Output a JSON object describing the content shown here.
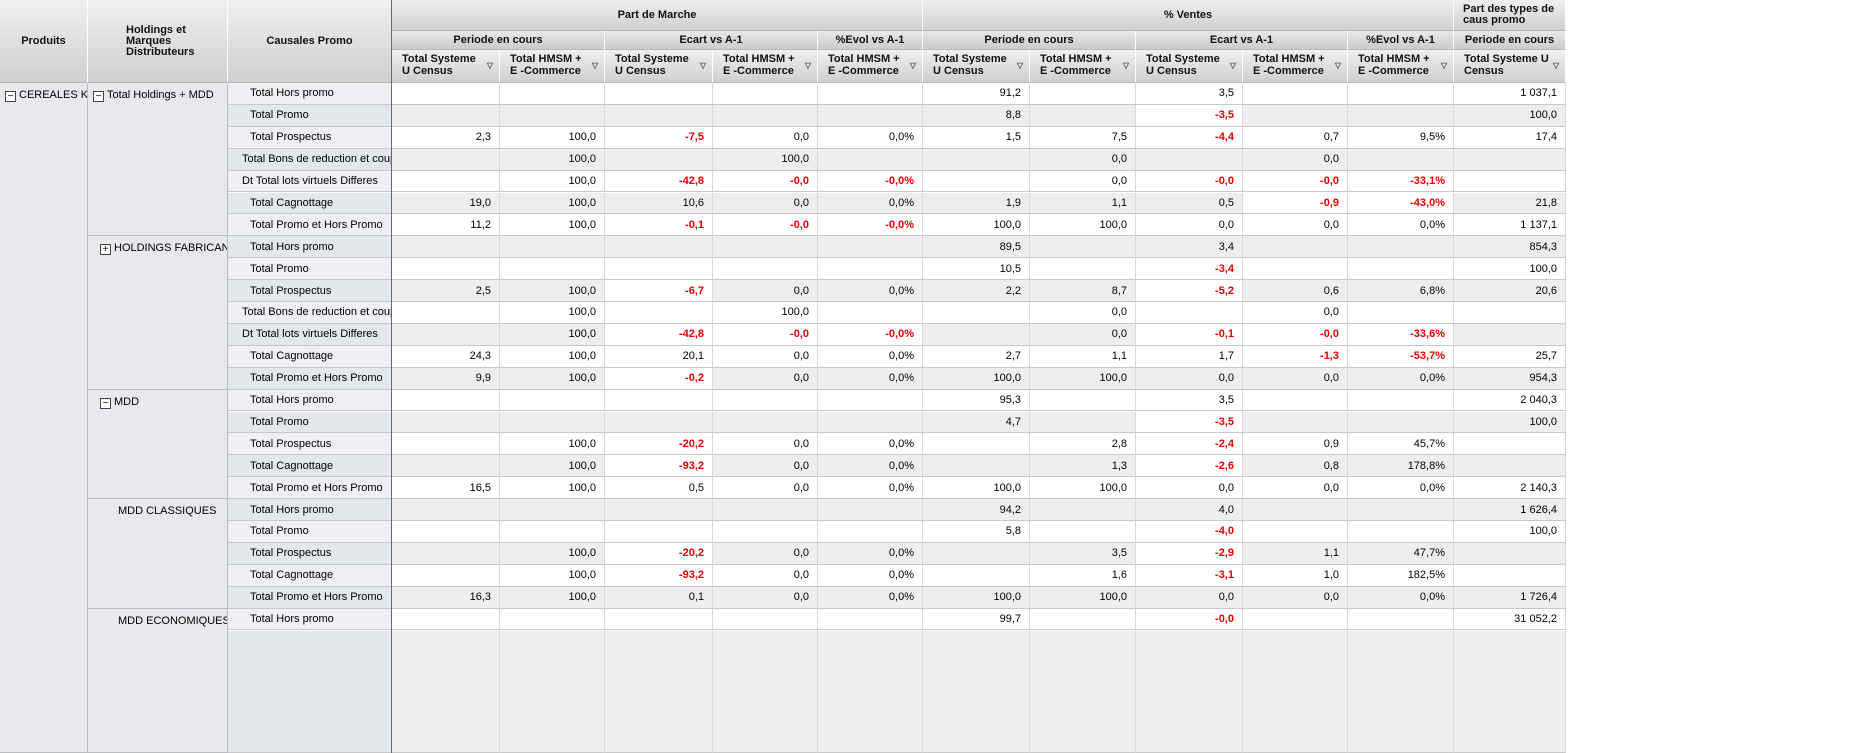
{
  "headers": {
    "produits": "Produits",
    "holdings": "Holdings et\nMarques\nDistributeurs",
    "causales": "Causales Promo",
    "groups": [
      {
        "label": "Part de Marche"
      },
      {
        "label": "% Ventes"
      },
      {
        "label": "Part des types de caus promo"
      }
    ],
    "subgroups": [
      {
        "label": "Periode en cours"
      },
      {
        "label": "Ecart vs A-1"
      },
      {
        "label": "%Evol vs A-1"
      },
      {
        "label": "Periode en cours"
      },
      {
        "label": "Ecart vs A-1"
      },
      {
        "label": "%Evol vs A-1"
      },
      {
        "label": "Periode en cours"
      }
    ],
    "columns": [
      {
        "label": "Total Systeme U Census",
        "filter_icon": "filter-icon"
      },
      {
        "label": "Total HMSM + E -Commerce",
        "filter_icon": "filter-icon"
      },
      {
        "label": "Total Systeme U Census",
        "filter_icon": "filter-icon"
      },
      {
        "label": "Total HMSM + E -Commerce",
        "filter_icon": "filter-icon"
      },
      {
        "label": "Total HMSM + E -Commerce",
        "filter_icon": "filter-icon"
      },
      {
        "label": "Total Systeme U Census",
        "filter_icon": "filter-icon"
      },
      {
        "label": "Total HMSM + E -Commerce",
        "filter_icon": "filter-icon"
      },
      {
        "label": "Total Systeme U Census",
        "filter_icon": "filter-icon"
      },
      {
        "label": "Total HMSM + E -Commerce",
        "filter_icon": "filter-icon"
      },
      {
        "label": "Total HMSM + E -Commerce",
        "filter_icon": "filter-icon"
      },
      {
        "label": "Total Systeme U Census",
        "filter_icon": "filter-icon"
      }
    ]
  },
  "product": {
    "label": "CEREALES KG",
    "toggle": "−"
  },
  "holding_groups": [
    {
      "label": "Total Holdings + MDD",
      "toggle": "−",
      "rows": 7
    },
    {
      "label": "HOLDINGS FABRICANTS",
      "toggle": "+",
      "rows": 7
    },
    {
      "label": "MDD",
      "toggle": "−",
      "rows": 5
    },
    {
      "label": "MDD CLASSIQUES",
      "toggle": "",
      "rows": 5
    },
    {
      "label": "MDD ECONOMIQUES",
      "toggle": "",
      "rows": 2
    }
  ],
  "rows": [
    {
      "causal": "Total Hors promo",
      "values": [
        "",
        "",
        "",
        "",
        "",
        "91,2",
        "",
        "3,5",
        "",
        "",
        "1 037,1"
      ]
    },
    {
      "causal": "Total Promo",
      "values": [
        "",
        "",
        "",
        "",
        "",
        "8,8",
        "",
        "-3,5",
        "",
        "",
        "100,0"
      ]
    },
    {
      "causal": "Total Prospectus",
      "values": [
        "2,3",
        "100,0",
        "-7,5",
        "0,0",
        "0,0%",
        "1,5",
        "7,5",
        "-4,4",
        "0,7",
        "9,5%",
        "17,4"
      ]
    },
    {
      "causal": "Total Bons de reduction et coupons",
      "values": [
        "",
        "100,0",
        "",
        "100,0",
        "",
        "",
        "0,0",
        "",
        "0,0",
        "",
        ""
      ]
    },
    {
      "causal": "Dt Total lots virtuels Differes",
      "values": [
        "",
        "100,0",
        "-42,8",
        "-0,0",
        "-0,0%",
        "",
        "0,0",
        "-0,0",
        "-0,0",
        "-33,1%",
        ""
      ]
    },
    {
      "causal": "Total Cagnottage",
      "values": [
        "19,0",
        "100,0",
        "10,6",
        "0,0",
        "0,0%",
        "1,9",
        "1,1",
        "0,5",
        "-0,9",
        "-43,0%",
        "21,8"
      ]
    },
    {
      "causal": "Total Promo et Hors Promo",
      "values": [
        "11,2",
        "100,0",
        "-0,1",
        "-0,0",
        "-0,0%",
        "100,0",
        "100,0",
        "0,0",
        "0,0",
        "0,0%",
        "1 137,1"
      ]
    },
    {
      "causal": "Total Hors promo",
      "values": [
        "",
        "",
        "",
        "",
        "",
        "89,5",
        "",
        "3,4",
        "",
        "",
        "854,3"
      ]
    },
    {
      "causal": "Total Promo",
      "values": [
        "",
        "",
        "",
        "",
        "",
        "10,5",
        "",
        "-3,4",
        "",
        "",
        "100,0"
      ]
    },
    {
      "causal": "Total Prospectus",
      "values": [
        "2,5",
        "100,0",
        "-6,7",
        "0,0",
        "0,0%",
        "2,2",
        "8,7",
        "-5,2",
        "0,6",
        "6,8%",
        "20,6"
      ]
    },
    {
      "causal": "Total Bons de reduction et coupons",
      "values": [
        "",
        "100,0",
        "",
        "100,0",
        "",
        "",
        "0,0",
        "",
        "0,0",
        "",
        ""
      ]
    },
    {
      "causal": "Dt Total lots virtuels Differes",
      "values": [
        "",
        "100,0",
        "-42,8",
        "-0,0",
        "-0,0%",
        "",
        "0,0",
        "-0,1",
        "-0,0",
        "-33,6%",
        ""
      ]
    },
    {
      "causal": "Total Cagnottage",
      "values": [
        "24,3",
        "100,0",
        "20,1",
        "0,0",
        "0,0%",
        "2,7",
        "1,1",
        "1,7",
        "-1,3",
        "-53,7%",
        "25,7"
      ]
    },
    {
      "causal": "Total Promo et Hors Promo",
      "values": [
        "9,9",
        "100,0",
        "-0,2",
        "0,0",
        "0,0%",
        "100,0",
        "100,0",
        "0,0",
        "0,0",
        "0,0%",
        "954,3"
      ]
    },
    {
      "causal": "Total Hors promo",
      "values": [
        "",
        "",
        "",
        "",
        "",
        "95,3",
        "",
        "3,5",
        "",
        "",
        "2 040,3"
      ]
    },
    {
      "causal": "Total Promo",
      "values": [
        "",
        "",
        "",
        "",
        "",
        "4,7",
        "",
        "-3,5",
        "",
        "",
        "100,0"
      ]
    },
    {
      "causal": "Total Prospectus",
      "values": [
        "",
        "100,0",
        "-20,2",
        "0,0",
        "0,0%",
        "",
        "2,8",
        "-2,4",
        "0,9",
        "45,7%",
        ""
      ]
    },
    {
      "causal": "Total Cagnottage",
      "values": [
        "",
        "100,0",
        "-93,2",
        "0,0",
        "0,0%",
        "",
        "1,3",
        "-2,6",
        "0,8",
        "178,8%",
        ""
      ]
    },
    {
      "causal": "Total Promo et Hors Promo",
      "values": [
        "16,5",
        "100,0",
        "0,5",
        "0,0",
        "0,0%",
        "100,0",
        "100,0",
        "0,0",
        "0,0",
        "0,0%",
        "2 140,3"
      ]
    },
    {
      "causal": "Total Hors promo",
      "values": [
        "",
        "",
        "",
        "",
        "",
        "94,2",
        "",
        "4,0",
        "",
        "",
        "1 626,4"
      ]
    },
    {
      "causal": "Total Promo",
      "values": [
        "",
        "",
        "",
        "",
        "",
        "5,8",
        "",
        "-4,0",
        "",
        "",
        "100,0"
      ]
    },
    {
      "causal": "Total Prospectus",
      "values": [
        "",
        "100,0",
        "-20,2",
        "0,0",
        "0,0%",
        "",
        "3,5",
        "-2,9",
        "1,1",
        "47,7%",
        ""
      ]
    },
    {
      "causal": "Total Cagnottage",
      "values": [
        "",
        "100,0",
        "-93,2",
        "0,0",
        "0,0%",
        "",
        "1,6",
        "-3,1",
        "1,0",
        "182,5%",
        ""
      ]
    },
    {
      "causal": "Total Promo et Hors Promo",
      "values": [
        "16,3",
        "100,0",
        "0,1",
        "0,0",
        "0,0%",
        "100,0",
        "100,0",
        "0,0",
        "0,0",
        "0,0%",
        "1 726,4"
      ]
    },
    {
      "causal": "Total Hors promo",
      "values": [
        "",
        "",
        "",
        "",
        "",
        "99,7",
        "",
        "-0,0",
        "",
        "",
        "31 052,2"
      ]
    },
    {
      "causal": "",
      "values": [
        "",
        "",
        "",
        "",
        "",
        "",
        "",
        "",
        "",
        "",
        ""
      ]
    }
  ],
  "colors": {
    "negative": "#e60000",
    "header": "#d6d6d6",
    "dimension": "#e7e9ec"
  }
}
